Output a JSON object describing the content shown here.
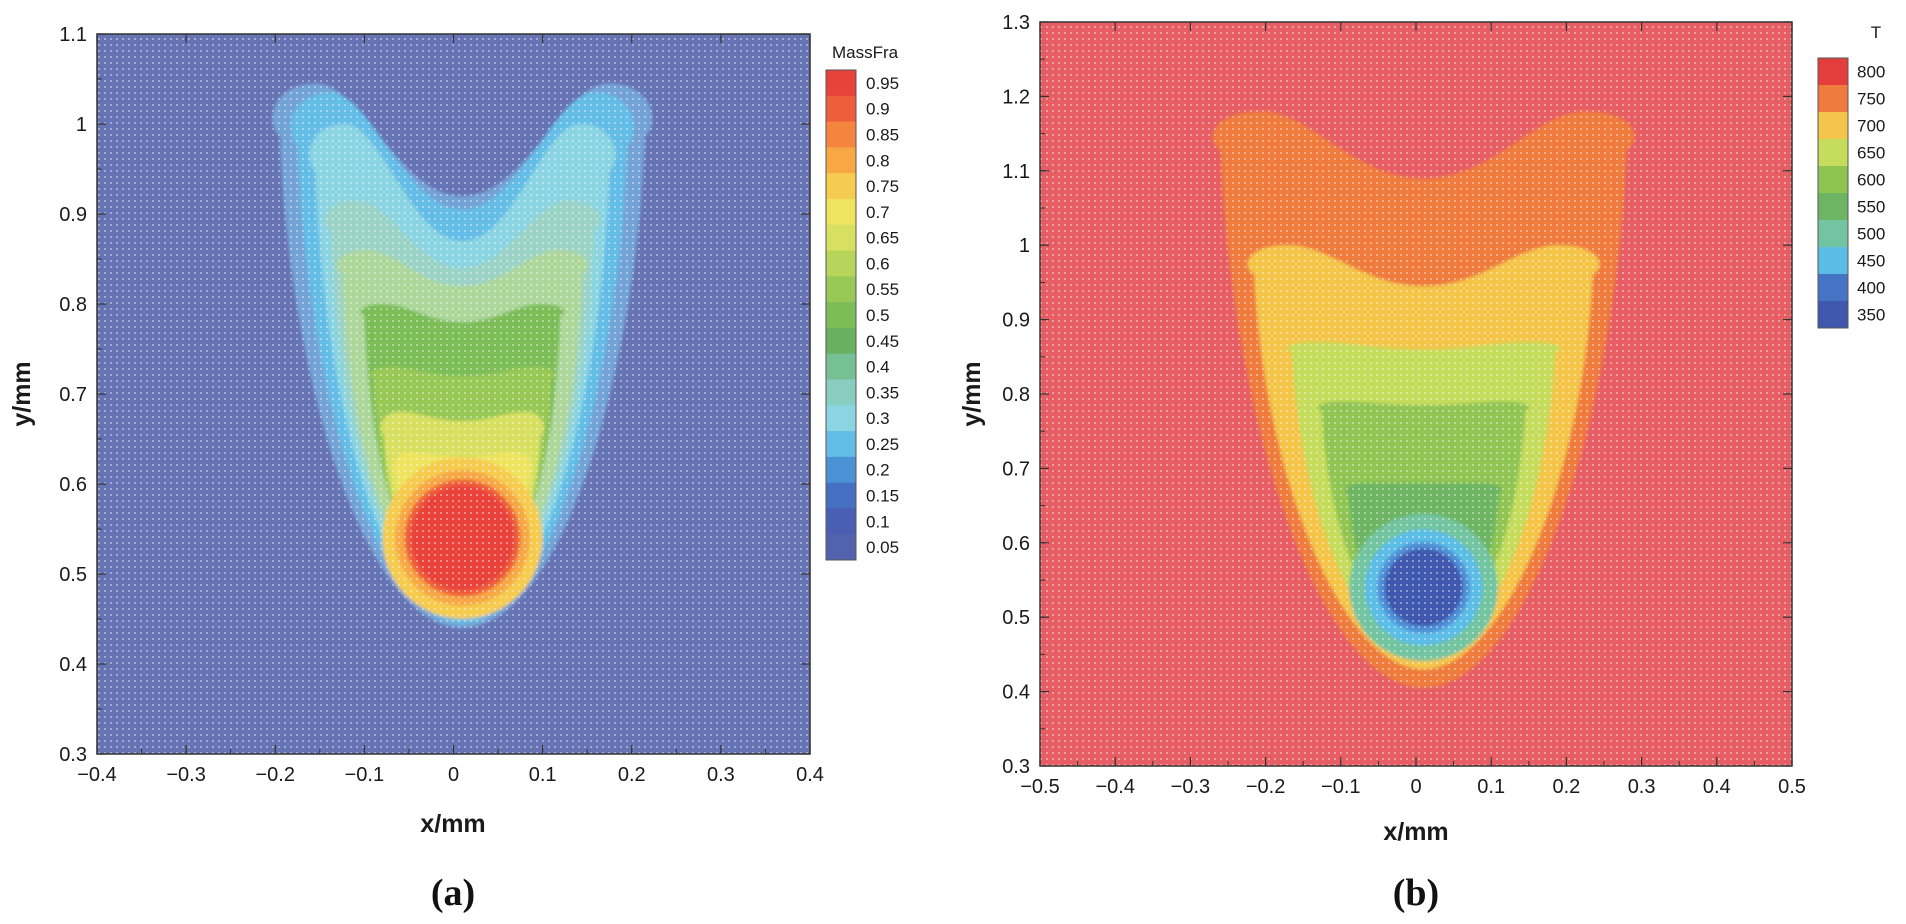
{
  "chart_data": [
    {
      "type": "heatmap",
      "panel_label": "(a)",
      "xlabel": "x/mm",
      "ylabel": "y/mm",
      "xlim": [
        -0.4,
        0.4
      ],
      "ylim": [
        0.3,
        1.1
      ],
      "xticks": [
        "-0.4",
        "-0.3",
        "-0.2",
        "-0.1",
        "0",
        "0.1",
        "0.2",
        "0.3",
        "0.4"
      ],
      "yticks": [
        "0.3",
        "0.4",
        "0.5",
        "0.6",
        "0.7",
        "0.8",
        "0.9",
        "1",
        "1.1"
      ],
      "legend": {
        "title": "MassFra",
        "placement": "right",
        "levels": [
          "0.95",
          "0.9",
          "0.85",
          "0.8",
          "0.75",
          "0.7",
          "0.65",
          "0.6",
          "0.55",
          "0.5",
          "0.45",
          "0.4",
          "0.35",
          "0.3",
          "0.25",
          "0.2",
          "0.15",
          "0.1",
          "0.05"
        ],
        "colors": [
          "#e8433a",
          "#ee5e3a",
          "#f4843e",
          "#f7a744",
          "#f5cc4f",
          "#eee45e",
          "#d7e060",
          "#b6d55a",
          "#98c856",
          "#7cbd58",
          "#6ab063",
          "#75c095",
          "#89ccc0",
          "#8bd4e2",
          "#63bde6",
          "#4a92d4",
          "#476fc1",
          "#4a5eb3",
          "#5262ad"
        ]
      },
      "background_color": "#6673b4",
      "field": {
        "droplet_center": [
          0.01,
          0.54
        ],
        "droplet_radius": 0.058,
        "max_value": 0.95,
        "min_value": 0.05
      }
    },
    {
      "type": "heatmap",
      "panel_label": "(b)",
      "xlabel": "x/mm",
      "ylabel": "y/mm",
      "xlim": [
        -0.5,
        0.5
      ],
      "ylim": [
        0.3,
        1.3
      ],
      "xticks": [
        "-0.5",
        "-0.4",
        "-0.3",
        "-0.2",
        "-0.1",
        "0",
        "0.1",
        "0.2",
        "0.3",
        "0.4",
        "0.5"
      ],
      "yticks": [
        "0.3",
        "0.4",
        "0.5",
        "0.6",
        "0.7",
        "0.8",
        "0.9",
        "1",
        "1.1",
        "1.2",
        "1.3"
      ],
      "legend": {
        "title": "T",
        "placement": "right",
        "levels": [
          "800",
          "750",
          "700",
          "650",
          "600",
          "550",
          "500",
          "450",
          "400",
          "350"
        ],
        "colors": [
          "#e33e3c",
          "#ef7b3e",
          "#f4c54a",
          "#c5dc5c",
          "#90c452",
          "#6db562",
          "#73c4a0",
          "#5bbde6",
          "#4574c4",
          "#3f58ad"
        ]
      },
      "background_color": "#e65e63",
      "field": {
        "droplet_center": [
          0.01,
          0.54
        ],
        "droplet_radius": 0.052,
        "max_value": 810,
        "min_value": 350
      }
    }
  ]
}
